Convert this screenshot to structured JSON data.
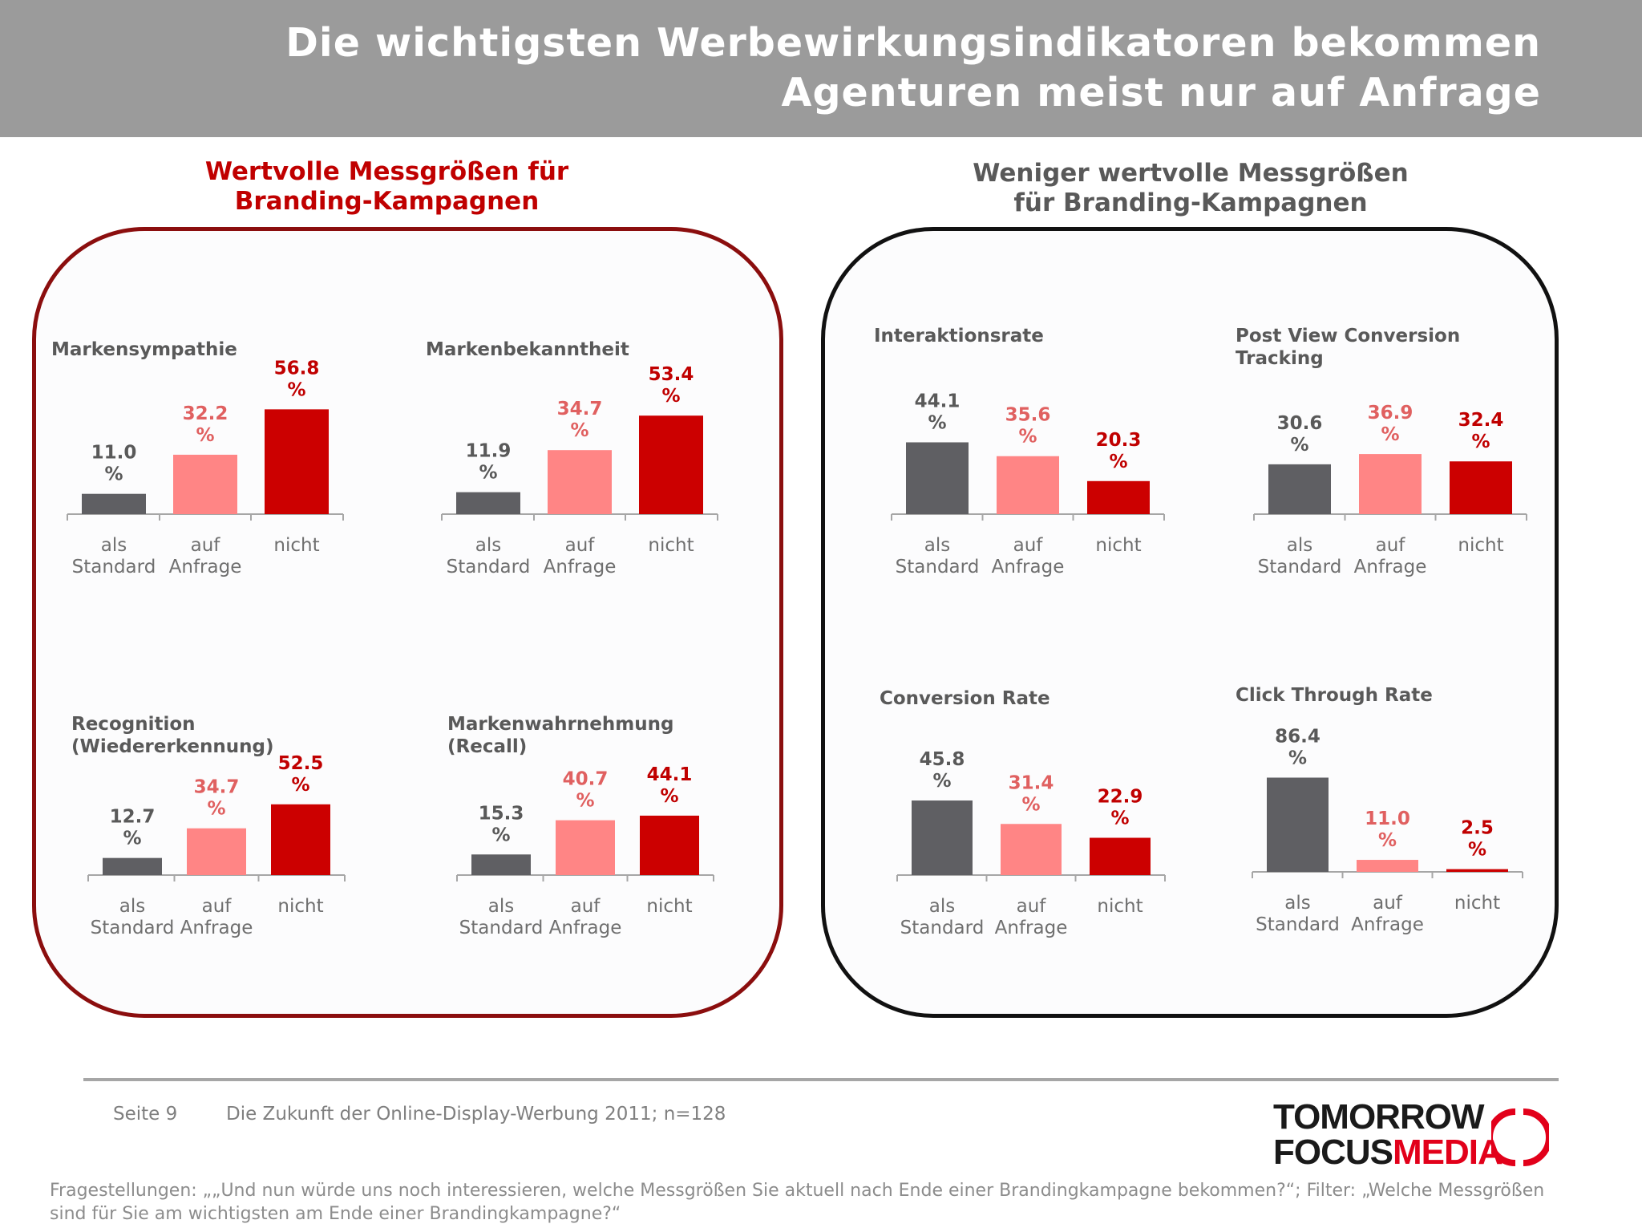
{
  "header": {
    "title_line_1": "Die wichtigsten Werbewirkungsindikatoren bekommen",
    "title_line_2": "Agenturen meist nur auf Anfrage"
  },
  "groups": {
    "left_heading_1": "Wertvolle Messgrößen für",
    "left_heading_2": "Branding-Kampagnen",
    "right_heading_1": "Weniger wertvolle Messgrößen",
    "right_heading_2": "für Branding-Kampagnen"
  },
  "colors": {
    "standard": "#5f5f63",
    "anfrage": "#ff8585",
    "nicht": "#cc0000",
    "label_standard": "#595959",
    "label_anfrage": "#e06060",
    "label_nicht": "#c00000",
    "axis": "#a6a6a6",
    "category_text": "#6f6f6f"
  },
  "chart_data": [
    {
      "type": "bar",
      "title_lines": [
        "Markensympathie"
      ],
      "categories": [
        [
          "als",
          "Standard"
        ],
        [
          "auf",
          "Anfrage"
        ],
        [
          "nicht"
        ]
      ],
      "values": [
        11.0,
        32.2,
        56.8
      ],
      "value_labels": [
        "11.0",
        "32.2",
        "56.8"
      ],
      "unit": "%"
    },
    {
      "type": "bar",
      "title_lines": [
        "Markenbekanntheit"
      ],
      "categories": [
        [
          "als",
          "Standard"
        ],
        [
          "auf",
          "Anfrage"
        ],
        [
          "nicht"
        ]
      ],
      "values": [
        11.9,
        34.7,
        53.4
      ],
      "value_labels": [
        "11.9",
        "34.7",
        "53.4"
      ],
      "unit": "%"
    },
    {
      "type": "bar",
      "title_lines": [
        "Recognition",
        "(Wiedererkennung)"
      ],
      "categories": [
        [
          "als",
          "Standard"
        ],
        [
          "auf",
          "Anfrage"
        ],
        [
          "nicht"
        ]
      ],
      "values": [
        12.7,
        34.7,
        52.5
      ],
      "value_labels": [
        "12.7",
        "34.7",
        "52.5"
      ],
      "unit": "%"
    },
    {
      "type": "bar",
      "title_lines": [
        "Markenwahrnehmung",
        "(Recall)"
      ],
      "categories": [
        [
          "als",
          "Standard"
        ],
        [
          "auf",
          "Anfrage"
        ],
        [
          "nicht"
        ]
      ],
      "values": [
        15.3,
        40.7,
        44.1
      ],
      "value_labels": [
        "15.3",
        "40.7",
        "44.1"
      ],
      "unit": "%"
    },
    {
      "type": "bar",
      "title_lines": [
        "Interaktionsrate"
      ],
      "categories": [
        [
          "als",
          "Standard"
        ],
        [
          "auf",
          "Anfrage"
        ],
        [
          "nicht"
        ]
      ],
      "values": [
        44.1,
        35.6,
        20.3
      ],
      "value_labels": [
        "44.1",
        "35.6",
        "20.3"
      ],
      "unit": "%"
    },
    {
      "type": "bar",
      "title_lines": [
        "Post View Conversion",
        "Tracking"
      ],
      "categories": [
        [
          "als",
          "Standard"
        ],
        [
          "auf",
          "Anfrage"
        ],
        [
          "nicht"
        ]
      ],
      "values": [
        30.6,
        36.9,
        32.4
      ],
      "value_labels": [
        "30.6",
        "36.9",
        "32.4"
      ],
      "unit": "%"
    },
    {
      "type": "bar",
      "title_lines": [
        "Conversion Rate"
      ],
      "categories": [
        [
          "als",
          "Standard"
        ],
        [
          "auf",
          "Anfrage"
        ],
        [
          "nicht"
        ]
      ],
      "values": [
        45.8,
        31.4,
        22.9
      ],
      "value_labels": [
        "45.8",
        "31.4",
        "22.9"
      ],
      "unit": "%"
    },
    {
      "type": "bar",
      "title_lines": [
        "Click Through Rate"
      ],
      "categories": [
        [
          "als",
          "Standard"
        ],
        [
          "auf",
          "Anfrage"
        ],
        [
          "nicht"
        ]
      ],
      "values": [
        86.4,
        11.0,
        2.5
      ],
      "value_labels": [
        "86.4",
        "11.0",
        "2.5"
      ],
      "unit": "%"
    }
  ],
  "footer": {
    "page": "Seite 9",
    "source": "Die Zukunft der Online-Display-Werbung 2011; n=128",
    "footnote": "Fragestellungen: „„Und nun würde uns noch interessieren, welche Messgrößen Sie aktuell nach Ende einer Brandingkampagne bekommen?“; Filter: „Welche Messgrößen sind für Sie am wichtigsten am Ende einer Brandingkampagne?“"
  },
  "logo": {
    "line_1": "TOMORROW",
    "line_2_a": "FOCUS",
    "line_2_b": "MEDIA"
  }
}
